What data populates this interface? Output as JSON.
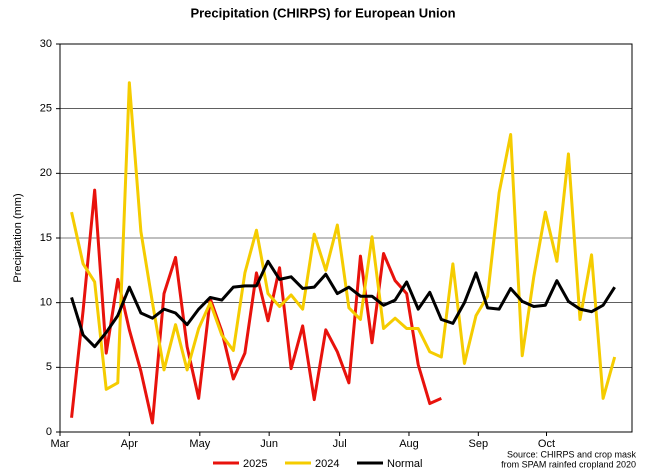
{
  "chart_data": {
    "type": "line",
    "title": "Precipitation (CHIRPS) for European Union",
    "ylabel": "Precipitation (mm)",
    "source": [
      "Source: CHIRPS and crop mask",
      "from SPAM rainfed cropland 2020"
    ],
    "x": [
      0,
      1,
      2,
      3,
      4,
      5,
      6,
      7,
      8,
      9,
      10,
      11,
      12,
      13,
      14,
      15,
      16,
      17,
      18,
      19,
      20,
      21,
      22,
      23,
      24,
      25,
      26,
      27,
      28,
      29,
      30,
      31,
      32,
      33,
      34,
      35,
      36,
      37,
      38,
      39,
      40,
      41,
      42,
      43,
      44,
      45,
      46,
      47
    ],
    "xlim": [
      -1,
      48.5
    ],
    "xticks": [
      {
        "value": -1,
        "label": "Mar"
      },
      {
        "value": 5,
        "label": "Apr"
      },
      {
        "value": 11.1,
        "label": "May"
      },
      {
        "value": 17.1,
        "label": "Jun"
      },
      {
        "value": 23.2,
        "label": "Jul"
      },
      {
        "value": 29.2,
        "label": "Aug"
      },
      {
        "value": 35.2,
        "label": "Sep"
      },
      {
        "value": 41.1,
        "label": "Oct"
      }
    ],
    "ylim": [
      0,
      30
    ],
    "yticks": [
      0,
      5,
      10,
      15,
      20,
      25,
      30
    ],
    "grid": true,
    "legend": "bottom",
    "series": [
      {
        "name": "2025",
        "color": "#e8120c",
        "values": [
          1.1,
          9.4,
          18.7,
          6.1,
          11.8,
          7.9,
          4.7,
          0.7,
          10.7,
          13.5,
          6.6,
          2.6,
          10.3,
          7.8,
          4.1,
          6.1,
          12.3,
          8.6,
          12.7,
          4.9,
          8.2,
          2.5,
          7.9,
          6.2,
          3.8,
          13.6,
          6.9,
          13.8,
          11.7,
          10.7,
          5.2,
          2.2,
          2.6,
          null,
          null,
          null,
          null,
          null,
          null,
          null,
          null,
          null,
          null,
          null,
          null,
          null,
          null,
          null
        ]
      },
      {
        "name": "2024",
        "color": "#f5cc00",
        "values": [
          17,
          13,
          11.6,
          3.3,
          3.8,
          27,
          15.5,
          10,
          4.8,
          8.3,
          4.8,
          8,
          10,
          7.5,
          6.3,
          12.3,
          15.6,
          10.7,
          9.7,
          10.6,
          9.5,
          15.3,
          12.5,
          16,
          9.6,
          8.7,
          15.1,
          8,
          8.8,
          8,
          8,
          6.2,
          5.8,
          13,
          5.3,
          9,
          10.5,
          18.5,
          23,
          5.9,
          12,
          17,
          13.2,
          21.5,
          8.7,
          13.7,
          2.6,
          5.8
        ]
      },
      {
        "name": "Normal",
        "color": "#000000",
        "values": [
          10.4,
          7.5,
          6.6,
          7.7,
          9,
          11.2,
          9.2,
          8.8,
          9.5,
          9.2,
          8.3,
          9.5,
          10.4,
          10.2,
          11.2,
          11.3,
          11.3,
          13.2,
          11.8,
          12,
          11.1,
          11.2,
          12.2,
          10.7,
          11.2,
          10.5,
          10.5,
          9.8,
          10.2,
          11.6,
          9.5,
          10.8,
          8.7,
          8.4,
          10,
          12.3,
          9.6,
          9.5,
          11.1,
          10.1,
          9.7,
          9.8,
          11.7,
          10.1,
          9.5,
          9.3,
          9.8,
          11.2
        ]
      }
    ]
  }
}
